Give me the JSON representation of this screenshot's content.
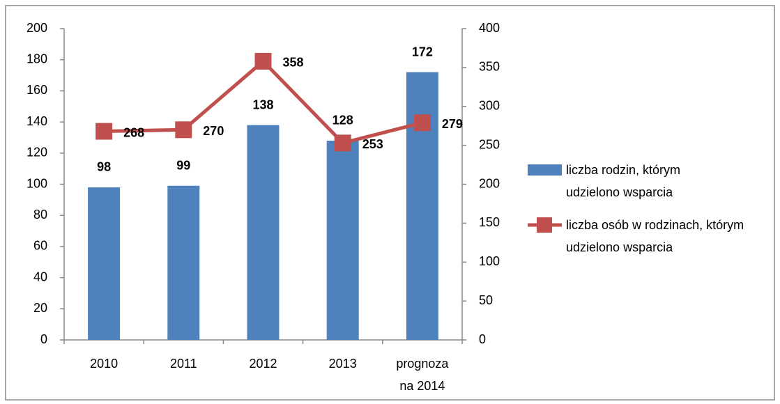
{
  "chart_data": {
    "type": "bar",
    "categories": [
      "2010",
      "2011",
      "2012",
      "2013",
      "prognoza na 2014"
    ],
    "series": [
      {
        "name": "liczba rodzin, którym udzielono wsparcia",
        "color": "#4f81bd",
        "values": [
          98,
          99,
          138,
          128,
          172
        ]
      },
      {
        "name": "liczba osób w rodzinach, którym udzielono wsparcia",
        "color": "#c0504d",
        "type": "line",
        "axis": "y2",
        "values": [
          268,
          270,
          358,
          253,
          279
        ]
      }
    ],
    "ylim": [
      0,
      200
    ],
    "yticks": [
      0,
      20,
      40,
      60,
      80,
      100,
      120,
      140,
      160,
      180,
      200
    ],
    "y2lim": [
      0,
      400
    ],
    "y2ticks": [
      0,
      50,
      100,
      150,
      200,
      250,
      300,
      350,
      400
    ],
    "grid": false,
    "legend": "right"
  }
}
